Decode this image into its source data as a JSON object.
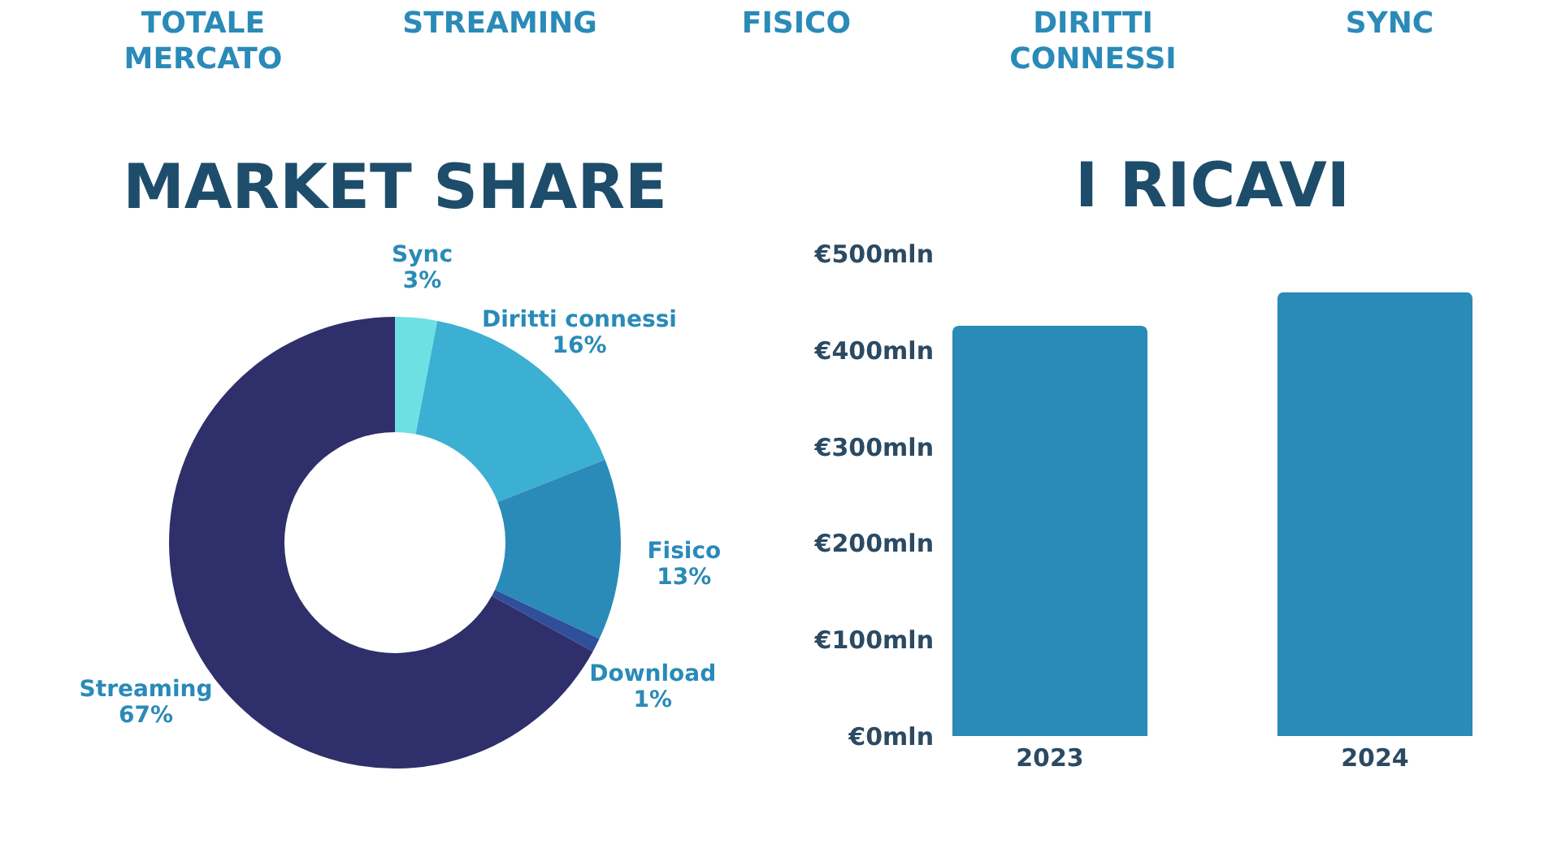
{
  "chart_data": [
    {
      "type": "other",
      "annotations": [
        "TOTALE MERCATO",
        "STREAMING",
        "FISICO",
        "DIRITTI CONNESSI",
        "SYNC"
      ]
    },
    {
      "type": "donut",
      "title": "MARKET SHARE",
      "categories": [
        "Sync",
        "Diritti connessi",
        "Fisico",
        "Download",
        "Streaming"
      ],
      "values": [
        3,
        16,
        13,
        1,
        67
      ],
      "value_labels": [
        "3%",
        "16%",
        "13%",
        "1%",
        "67%"
      ],
      "colors": [
        "#6de0e3",
        "#3bb0d3",
        "#2a8ab8",
        "#2f4f9a",
        "#2f2f6b"
      ]
    },
    {
      "type": "bar",
      "title": "I RICAVI",
      "categories": [
        "2023",
        "2024"
      ],
      "values": [
        425,
        460
      ],
      "color": "#2a8ab8",
      "ylim": [
        0,
        500
      ],
      "yticks": [
        {
          "value": 0,
          "label": "€0mln"
        },
        {
          "value": 100,
          "label": "€100mln"
        },
        {
          "value": 200,
          "label": "€200mln"
        },
        {
          "value": 300,
          "label": "€300mln"
        },
        {
          "value": 400,
          "label": "€400mln"
        },
        {
          "value": 500,
          "label": "€500mln"
        }
      ]
    }
  ]
}
